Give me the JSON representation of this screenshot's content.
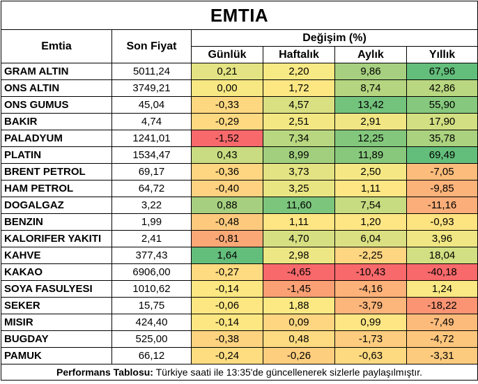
{
  "title": "EMTIA",
  "headers": {
    "emtia": "Emtia",
    "son_fiyat": "Son Fiyat",
    "degisim": "Değişim (%)",
    "gunluk": "Günlük",
    "haftalik": "Haftalık",
    "aylik": "Aylık",
    "yillik": "Yıllık"
  },
  "rows": [
    {
      "name": "GRAM ALTIN",
      "price": "5011,24",
      "d": "0,21",
      "w": "2,20",
      "m": "9,86",
      "y": "67,96",
      "colors": [
        "#e3e383",
        "#f7e984",
        "#a6d07f",
        "#63be7b"
      ]
    },
    {
      "name": "ONS ALTIN",
      "price": "3749,21",
      "d": "0,00",
      "w": "1,72",
      "m": "8,74",
      "y": "42,86",
      "colors": [
        "#f7e884",
        "#fde783",
        "#b5d580",
        "#b9d780"
      ]
    },
    {
      "name": "ONS GUMUS",
      "price": "45,04",
      "d": "-0,33",
      "w": "4,57",
      "m": "13,42",
      "y": "55,90",
      "colors": [
        "#fed881",
        "#d8e082",
        "#73c37c",
        "#86c87d"
      ]
    },
    {
      "name": "BAKIR",
      "price": "4,74",
      "d": "-0,29",
      "w": "2,51",
      "m": "2,91",
      "y": "17,90",
      "colors": [
        "#fed981",
        "#f2e783",
        "#f0e683",
        "#d2df82"
      ]
    },
    {
      "name": "PALADYUM",
      "price": "1241,01",
      "d": "-1,52",
      "w": "7,34",
      "m": "12,25",
      "y": "35,78",
      "colors": [
        "#f8696b",
        "#b9d780",
        "#83c77c",
        "#abd27f"
      ]
    },
    {
      "name": "PLATIN",
      "price": "1534,47",
      "d": "0,43",
      "w": "8,99",
      "m": "11,89",
      "y": "69,49",
      "colors": [
        "#c9dc81",
        "#a1cf7e",
        "#88c87d",
        "#63be7b"
      ]
    },
    {
      "name": "BRENT PETROL",
      "price": "69,17",
      "d": "-0,36",
      "w": "3,73",
      "m": "2,50",
      "y": "-7,05",
      "colors": [
        "#fed580",
        "#e3e383",
        "#f5e884",
        "#fcbc7b"
      ]
    },
    {
      "name": "HAM PETROL",
      "price": "64,72",
      "d": "-0,40",
      "w": "3,25",
      "m": "1,11",
      "y": "-9,85",
      "colors": [
        "#fed280",
        "#e9e583",
        "#fde683",
        "#fcb37a"
      ]
    },
    {
      "name": "DOGALGAZ",
      "price": "3,22",
      "d": "0,88",
      "w": "11,60",
      "m": "7,54",
      "y": "-11,16",
      "colors": [
        "#a6d07f",
        "#7cc57c",
        "#c7dc81",
        "#fbae79"
      ]
    },
    {
      "name": "BENZIN",
      "price": "1,99",
      "d": "-0,48",
      "w": "1,11",
      "m": "1,20",
      "y": "-0,93",
      "colors": [
        "#fdc97d",
        "#fde683",
        "#fde683",
        "#fee381"
      ]
    },
    {
      "name": "KALORIFER YAKITI",
      "price": "2,41",
      "d": "-0,81",
      "w": "4,70",
      "m": "6,04",
      "y": "3,96",
      "colors": [
        "#fba877",
        "#d6e082",
        "#dbe182",
        "#f0e683"
      ]
    },
    {
      "name": "KAHVE",
      "price": "377,43",
      "d": "1,64",
      "w": "2,98",
      "m": "-2,25",
      "y": "18,04",
      "colors": [
        "#63be7b",
        "#ede684",
        "#fed580",
        "#d2df82"
      ]
    },
    {
      "name": "KAKAO",
      "price": "6906,00",
      "d": "-0,27",
      "w": "-4,65",
      "m": "-10,43",
      "y": "-40,18",
      "colors": [
        "#fedb81",
        "#f8696b",
        "#f8696b",
        "#f8696b"
      ]
    },
    {
      "name": "SOYA FASULYESI",
      "price": "1010,62",
      "d": "-0,14",
      "w": "-1,45",
      "m": "-4,16",
      "y": "1,24",
      "colors": [
        "#fde782",
        "#fba074",
        "#fcb279",
        "#f9e883"
      ]
    },
    {
      "name": "SEKER",
      "price": "15,75",
      "d": "-0,06",
      "w": "1,88",
      "m": "-3,79",
      "y": "-18,22",
      "colors": [
        "#fde782",
        "#fce984",
        "#fcb57a",
        "#fa9473"
      ]
    },
    {
      "name": "MISIR",
      "price": "424,40",
      "d": "-0,14",
      "w": "0,09",
      "m": "0,99",
      "y": "-7,49",
      "colors": [
        "#fde782",
        "#fed580",
        "#fde683",
        "#fcbb7b"
      ]
    },
    {
      "name": "BUGDAY",
      "price": "525,00",
      "d": "-0,38",
      "w": "0,48",
      "m": "-1,73",
      "y": "-4,72",
      "colors": [
        "#fdd380",
        "#fedb81",
        "#fdcc7e",
        "#fdc67d"
      ]
    },
    {
      "name": "PAMUK",
      "price": "66,12",
      "d": "-0,24",
      "w": "-0,26",
      "m": "-0,63",
      "y": "-3,31",
      "colors": [
        "#fedd81",
        "#fdce7e",
        "#fdda80",
        "#fdcb7e"
      ]
    }
  ],
  "footer": {
    "label": "Performans Tablosu:",
    "text": " Türkiye saati ile 13:35'de güncellenerek sizlerle paylaşılmıştır."
  }
}
